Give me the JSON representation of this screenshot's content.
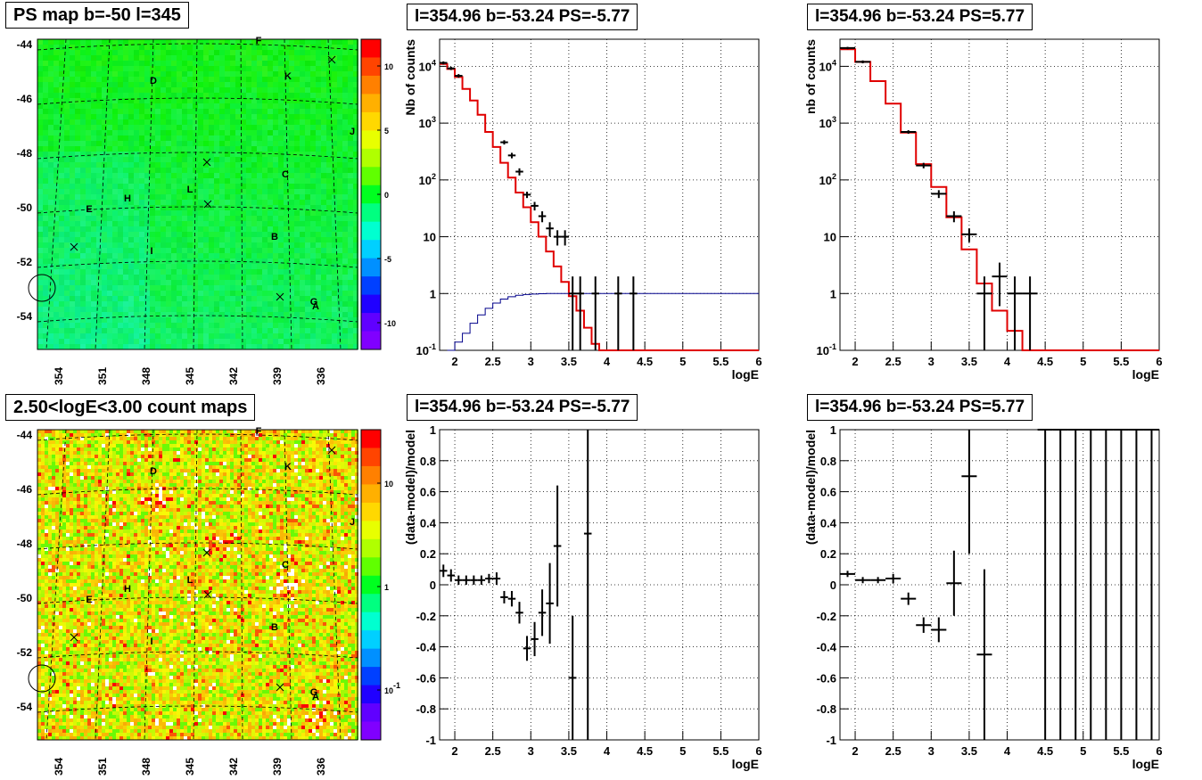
{
  "panels": {
    "map_ps_title": "PS map b=-50 l=345",
    "map_counts_title": "2.50<logE<3.00 count maps",
    "spec_neg_title": "l=354.96 b=-53.24 PS=-5.77",
    "spec_pos_title": "l=354.96 b=-53.24 PS=5.77",
    "res_neg_title": "l=354.96 b=-53.24 PS=-5.77",
    "res_pos_title": "l=354.96 b=-53.24 PS=5.77"
  },
  "maps": {
    "lat_ticks": [
      "-44",
      "-46",
      "-48",
      "-50",
      "-52",
      "-54"
    ],
    "lon_ticks": [
      "354",
      "351",
      "348",
      "345",
      "342",
      "339",
      "336"
    ],
    "source_labels": [
      "F",
      "K",
      "D",
      "J",
      "C",
      "L",
      "H",
      "E",
      "B",
      "I",
      "G",
      "A"
    ],
    "ps_colorbar_ticks": [
      "10",
      "5",
      "0",
      "-5",
      "-10"
    ],
    "count_colorbar_ticks": [
      "10",
      "1",
      "10-1"
    ]
  },
  "chart_data": [
    {
      "type": "line",
      "title": "l=354.96 b=-53.24 PS=-5.77",
      "xlabel": "logE",
      "ylabel": "Nb of counts",
      "xlim": [
        1.8,
        6.0
      ],
      "ylim": [
        0.1,
        30000
      ],
      "ylog": true,
      "x_ticks": [
        "2",
        "2.5",
        "3",
        "3.5",
        "4",
        "4.5",
        "5",
        "5.5",
        "6"
      ],
      "y_ticks": [
        "10-1",
        "1",
        "10",
        "102",
        "103",
        "104"
      ],
      "grid": true,
      "model_bins": [
        1.8,
        1.9,
        2.0,
        2.1,
        2.2,
        2.3,
        2.4,
        2.5,
        2.6,
        2.7,
        2.8,
        2.9,
        3.0,
        3.1,
        3.2,
        3.3,
        3.4,
        3.5,
        3.6,
        3.7,
        3.8,
        3.9,
        4.0,
        6.0
      ],
      "model_values": [
        11000,
        9000,
        6500,
        4000,
        2500,
        1400,
        700,
        380,
        200,
        110,
        60,
        33,
        18,
        10,
        5.5,
        3,
        1.6,
        0.9,
        0.5,
        0.25,
        0.13,
        0.1,
        0.1
      ],
      "acceptance_x": [
        1.9,
        2.0,
        2.1,
        2.2,
        2.3,
        2.4,
        2.5,
        2.6,
        2.7,
        2.8,
        2.9,
        3.0,
        3.1,
        3.2,
        3.3,
        3.5,
        6.0
      ],
      "acceptance_y": [
        0.1,
        0.14,
        0.2,
        0.3,
        0.42,
        0.55,
        0.68,
        0.8,
        0.88,
        0.93,
        0.96,
        0.98,
        0.99,
        1.0,
        1.0,
        1.0,
        1.0
      ],
      "data_points": [
        {
          "x": 1.85,
          "y": 11500,
          "lo": 10800,
          "hi": 12200
        },
        {
          "x": 1.95,
          "y": 9200,
          "lo": 8600,
          "hi": 9800
        },
        {
          "x": 2.05,
          "y": 6800,
          "lo": 6300,
          "hi": 7300
        },
        {
          "x": 2.65,
          "y": 460,
          "lo": 420,
          "hi": 500
        },
        {
          "x": 2.75,
          "y": 270,
          "lo": 240,
          "hi": 300
        },
        {
          "x": 2.85,
          "y": 140,
          "lo": 120,
          "hi": 160
        },
        {
          "x": 2.95,
          "y": 55,
          "lo": 48,
          "hi": 62
        },
        {
          "x": 3.05,
          "y": 35,
          "lo": 29,
          "hi": 41
        },
        {
          "x": 3.15,
          "y": 23,
          "lo": 18,
          "hi": 28
        },
        {
          "x": 3.25,
          "y": 14,
          "lo": 10,
          "hi": 18
        },
        {
          "x": 3.35,
          "y": 10,
          "lo": 7,
          "hi": 13
        },
        {
          "x": 3.45,
          "y": 10,
          "lo": 7,
          "hi": 13
        },
        {
          "x": 3.55,
          "y": 1,
          "lo": 0.1,
          "hi": 2
        },
        {
          "x": 3.65,
          "y": 1,
          "lo": 0.1,
          "hi": 2
        },
        {
          "x": 3.85,
          "y": 1,
          "lo": 0.1,
          "hi": 2
        },
        {
          "x": 4.15,
          "y": 1,
          "lo": 0.1,
          "hi": 2
        },
        {
          "x": 4.35,
          "y": 1,
          "lo": 0.1,
          "hi": 2
        }
      ]
    },
    {
      "type": "line",
      "title": "l=354.96 b=-53.24 PS=5.77",
      "xlabel": "logE",
      "ylabel": "nb of counts",
      "xlim": [
        1.8,
        6.0
      ],
      "ylim": [
        0.1,
        30000
      ],
      "ylog": true,
      "x_ticks": [
        "2",
        "2.5",
        "3",
        "3.5",
        "4",
        "4.5",
        "5",
        "5.5",
        "6"
      ],
      "y_ticks": [
        "10-1",
        "1",
        "10",
        "102",
        "103",
        "104"
      ],
      "grid": true,
      "model_bins": [
        1.8,
        2.0,
        2.2,
        2.4,
        2.6,
        2.8,
        3.0,
        3.2,
        3.4,
        3.6,
        3.8,
        4.0,
        4.2,
        6.0
      ],
      "model_values": [
        20000,
        12000,
        5500,
        2200,
        680,
        190,
        75,
        22,
        6,
        1.5,
        0.5,
        0.22,
        0.1
      ],
      "data_points": [
        {
          "x": 1.9,
          "y": 21000,
          "lo": 20000,
          "hi": 22000
        },
        {
          "x": 2.1,
          "y": 12000,
          "lo": 11300,
          "hi": 12700
        },
        {
          "x": 2.7,
          "y": 700,
          "lo": 650,
          "hi": 750
        },
        {
          "x": 2.9,
          "y": 180,
          "lo": 160,
          "hi": 200
        },
        {
          "x": 3.1,
          "y": 57,
          "lo": 48,
          "hi": 66
        },
        {
          "x": 3.3,
          "y": 23,
          "lo": 18,
          "hi": 28
        },
        {
          "x": 3.5,
          "y": 11,
          "lo": 8,
          "hi": 14
        },
        {
          "x": 3.7,
          "y": 1,
          "lo": 0.1,
          "hi": 2
        },
        {
          "x": 3.9,
          "y": 2,
          "lo": 0.6,
          "hi": 3.5
        },
        {
          "x": 4.1,
          "y": 1,
          "lo": 0.1,
          "hi": 2
        },
        {
          "x": 4.3,
          "y": 1,
          "lo": 0.1,
          "hi": 2
        }
      ]
    },
    {
      "type": "scatter",
      "title": "l=354.96 b=-53.24 PS=-5.77",
      "xlabel": "logE",
      "ylabel": "(data-model)/model",
      "xlim": [
        1.8,
        6.0
      ],
      "ylim": [
        -1,
        1
      ],
      "x_ticks": [
        "2",
        "2.5",
        "3",
        "3.5",
        "4",
        "4.5",
        "5",
        "5.5",
        "6"
      ],
      "y_ticks": [
        "-1",
        "-0.8",
        "-0.6",
        "-0.4",
        "-0.2",
        "0",
        "0.2",
        "0.4",
        "0.6",
        "0.8",
        "1"
      ],
      "grid": true,
      "data_points": [
        {
          "x": 1.85,
          "y": 0.09,
          "lo": 0.05,
          "hi": 0.13
        },
        {
          "x": 1.95,
          "y": 0.06,
          "lo": 0.02,
          "hi": 0.1
        },
        {
          "x": 2.05,
          "y": 0.03,
          "lo": 0.0,
          "hi": 0.06
        },
        {
          "x": 2.15,
          "y": 0.03,
          "lo": 0.0,
          "hi": 0.06
        },
        {
          "x": 2.25,
          "y": 0.03,
          "lo": 0.0,
          "hi": 0.06
        },
        {
          "x": 2.35,
          "y": 0.03,
          "lo": 0.0,
          "hi": 0.06
        },
        {
          "x": 2.45,
          "y": 0.04,
          "lo": 0.01,
          "hi": 0.07
        },
        {
          "x": 2.55,
          "y": 0.04,
          "lo": 0.0,
          "hi": 0.08
        },
        {
          "x": 2.65,
          "y": -0.08,
          "lo": -0.12,
          "hi": -0.04
        },
        {
          "x": 2.75,
          "y": -0.09,
          "lo": -0.14,
          "hi": -0.04
        },
        {
          "x": 2.85,
          "y": -0.18,
          "lo": -0.25,
          "hi": -0.11
        },
        {
          "x": 2.95,
          "y": -0.41,
          "lo": -0.49,
          "hi": -0.33
        },
        {
          "x": 3.05,
          "y": -0.35,
          "lo": -0.46,
          "hi": -0.24
        },
        {
          "x": 3.15,
          "y": -0.18,
          "lo": -0.33,
          "hi": -0.03
        },
        {
          "x": 3.25,
          "y": -0.12,
          "lo": -0.38,
          "hi": 0.14
        },
        {
          "x": 3.35,
          "y": 0.25,
          "lo": -0.14,
          "hi": 0.64
        },
        {
          "x": 3.55,
          "y": -0.6,
          "lo": -1.0,
          "hi": -0.2
        },
        {
          "x": 3.75,
          "y": 0.33,
          "lo": -1.0,
          "hi": 1.0
        }
      ]
    },
    {
      "type": "scatter",
      "title": "l=354.96 b=-53.24 PS=5.77",
      "xlabel": "logE",
      "ylabel": "(data-model)/model",
      "xlim": [
        1.8,
        6.0
      ],
      "ylim": [
        -1,
        1
      ],
      "x_ticks": [
        "2",
        "2.5",
        "3",
        "3.5",
        "4",
        "4.5",
        "5",
        "5.5",
        "6"
      ],
      "y_ticks": [
        "-1",
        "-0.8",
        "-0.6",
        "-0.4",
        "-0.2",
        "0",
        "0.2",
        "0.4",
        "0.6",
        "0.8",
        "1"
      ],
      "grid": true,
      "data_points": [
        {
          "x": 1.9,
          "y": 0.07,
          "lo": 0.05,
          "hi": 0.09
        },
        {
          "x": 2.1,
          "y": 0.03,
          "lo": 0.01,
          "hi": 0.05
        },
        {
          "x": 2.3,
          "y": 0.03,
          "lo": 0.01,
          "hi": 0.05
        },
        {
          "x": 2.5,
          "y": 0.04,
          "lo": 0.01,
          "hi": 0.07
        },
        {
          "x": 2.7,
          "y": -0.09,
          "lo": -0.13,
          "hi": -0.05
        },
        {
          "x": 2.9,
          "y": -0.26,
          "lo": -0.31,
          "hi": -0.21
        },
        {
          "x": 3.1,
          "y": -0.29,
          "lo": -0.37,
          "hi": -0.21
        },
        {
          "x": 3.3,
          "y": 0.01,
          "lo": -0.2,
          "hi": 0.22
        },
        {
          "x": 3.5,
          "y": 0.7,
          "lo": 0.2,
          "hi": 1.0
        },
        {
          "x": 3.7,
          "y": -0.45,
          "lo": -1.0,
          "hi": 0.1
        },
        {
          "x": 4.5,
          "y": 1.0,
          "lo": -1.0,
          "hi": 1.0
        },
        {
          "x": 4.7,
          "y": 1.0,
          "lo": -1.0,
          "hi": 1.0
        },
        {
          "x": 4.9,
          "y": 1.0,
          "lo": -1.0,
          "hi": 1.0
        },
        {
          "x": 5.1,
          "y": 1.0,
          "lo": -1.0,
          "hi": 1.0
        },
        {
          "x": 5.3,
          "y": 1.0,
          "lo": -1.0,
          "hi": 1.0
        },
        {
          "x": 5.5,
          "y": 1.0,
          "lo": -1.0,
          "hi": 1.0
        },
        {
          "x": 5.7,
          "y": 1.0,
          "lo": -1.0,
          "hi": 1.0
        },
        {
          "x": 5.9,
          "y": 1.0,
          "lo": -1.0,
          "hi": 1.0
        }
      ]
    }
  ]
}
